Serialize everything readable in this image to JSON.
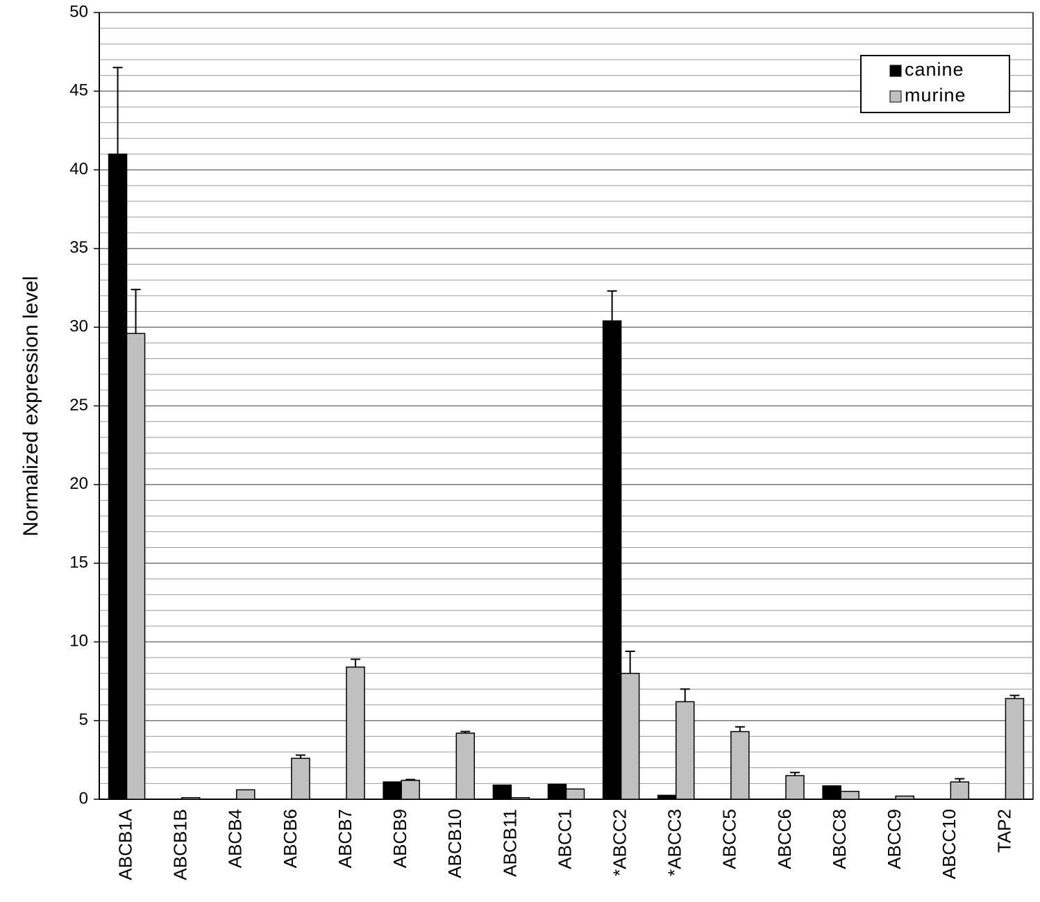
{
  "chart_data": {
    "type": "bar",
    "y_axis_label": "Normalized  expression  level",
    "categories": [
      "ABCB1A",
      "ABCB1B",
      "ABCB4",
      "ABCB6",
      "ABCB7",
      "ABCB9",
      "ABCB10",
      "ABCB11",
      "ABCC1",
      "*ABCC2",
      "*ABCC3",
      "ABCC5",
      "ABCC6",
      "ABCC8",
      "ABCC9",
      "ABCC10",
      "TAP2"
    ],
    "series": [
      {
        "name": "canine",
        "color": "#000000",
        "values": [
          41.0,
          0,
          0,
          0,
          0,
          1.1,
          0,
          0.9,
          0.95,
          30.4,
          0.25,
          0,
          0,
          0.85,
          0,
          0,
          0
        ],
        "errors": [
          5.5,
          null,
          null,
          null,
          null,
          null,
          null,
          null,
          null,
          1.9,
          null,
          null,
          null,
          null,
          null,
          null,
          null
        ]
      },
      {
        "name": "murine",
        "color": "#c0c0c0",
        "values": [
          29.6,
          0.1,
          0.6,
          2.6,
          8.4,
          1.2,
          4.2,
          0.1,
          0.65,
          8.0,
          6.2,
          4.3,
          1.5,
          0.5,
          0.2,
          1.1,
          6.4
        ],
        "errors": [
          2.8,
          null,
          null,
          0.2,
          0.5,
          0.05,
          0.1,
          null,
          null,
          1.4,
          0.8,
          0.3,
          0.2,
          null,
          null,
          0.2,
          0.2
        ]
      }
    ],
    "ylim": [
      0,
      50
    ],
    "yticks": [
      0,
      5,
      10,
      15,
      20,
      25,
      30,
      35,
      40,
      45,
      50
    ],
    "grid": true,
    "minor_grid_per_major": 5,
    "legend": "upper right"
  }
}
